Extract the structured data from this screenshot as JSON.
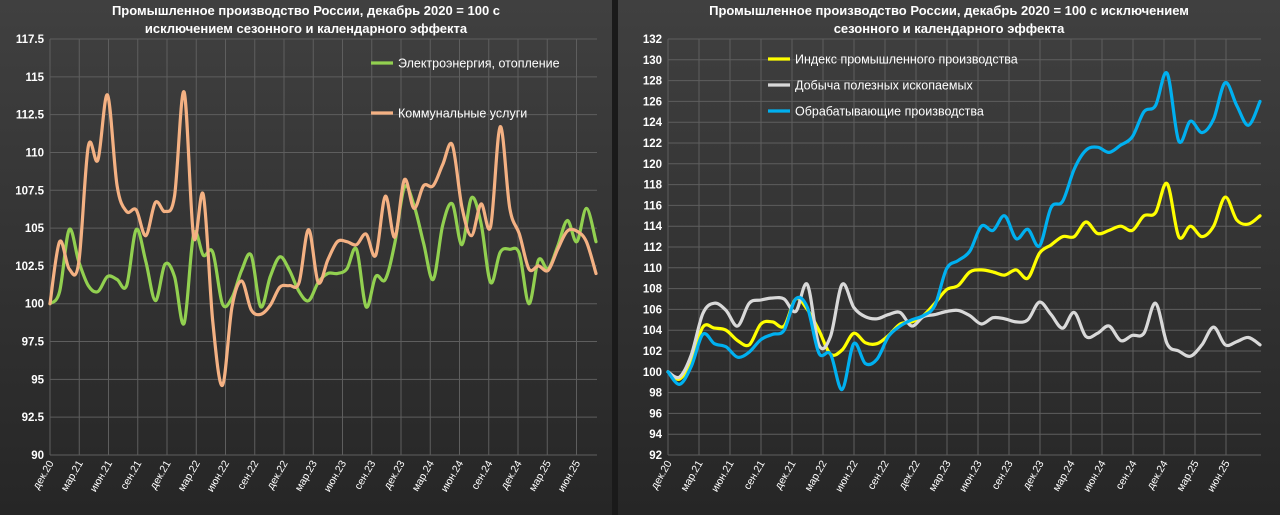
{
  "chart_data": [
    {
      "type": "line",
      "title_line1": "Промышленное производство России, декабрь 2020 = 100 с",
      "title_line2": "исключением сезонного и календарного эффекта",
      "xlabel": "",
      "ylabel": "",
      "ylim": [
        90,
        117.5
      ],
      "y_ticks": [
        "90",
        "92.5",
        "95",
        "97.5",
        "100",
        "102.5",
        "105",
        "107.5",
        "110",
        "112.5",
        "115",
        "117.5"
      ],
      "x_tick_labels": [
        "дек.20",
        "мар.21",
        "июн.21",
        "сен.21",
        "дек.21",
        "мар.22",
        "июн.22",
        "сен.22",
        "дек.22",
        "мар.23",
        "июн.23",
        "сен.23",
        "дек.23",
        "мар.24",
        "июн.24",
        "сен.24",
        "дек.24",
        "мар.25",
        "июн.25"
      ],
      "grid": true,
      "legend_position": "top-right",
      "series": [
        {
          "name": "Электроэнергия, отопление",
          "color": "#92d050",
          "values": [
            100,
            100.8,
            104.9,
            102.8,
            101.2,
            100.8,
            101.8,
            101.6,
            101.2,
            104.9,
            102.8,
            100.2,
            102.6,
            101.8,
            98.7,
            104.6,
            103.2,
            103.4,
            100,
            100.4,
            102.2,
            103.2,
            99.8,
            101.8,
            103.1,
            102.2,
            100.8,
            100.2,
            101.4,
            102,
            102,
            102.3,
            103.6,
            99.8,
            101.8,
            101.6,
            104,
            107.7,
            106.5,
            104,
            101.6,
            105.2,
            106.6,
            103.9,
            107,
            105.3,
            101.4,
            103.4,
            103.6,
            103.3,
            100,
            102.9,
            102.3,
            103.8,
            105.5,
            104.1,
            106.3,
            104.1
          ]
        },
        {
          "name": "Коммунальные услуги",
          "color": "#f4b183",
          "values": [
            100,
            104.1,
            102.3,
            102.7,
            110.4,
            109.5,
            113.8,
            107.8,
            106.1,
            106.2,
            104.5,
            106.7,
            106.1,
            107.1,
            114,
            104.4,
            107.2,
            98.8,
            94.6,
            99.8,
            101.5,
            99.6,
            99.3,
            99.9,
            101.1,
            101.2,
            101.4,
            104.9,
            101.4,
            102.9,
            104.1,
            104.1,
            103.9,
            104.6,
            103.2,
            107.1,
            104.4,
            108.2,
            106.3,
            107.8,
            107.8,
            109.2,
            110.5,
            106.4,
            104.5,
            106.6,
            105.1,
            111.7,
            106.3,
            104.6,
            102.3,
            102.5,
            102.2,
            103.6,
            104.8,
            104.8,
            104.1,
            102
          ]
        }
      ]
    },
    {
      "type": "line",
      "title_line1": "Промышленное производство России, декабрь 2020 = 100 с исключением",
      "title_line2": "сезонного и календарного эффекта",
      "xlabel": "",
      "ylabel": "",
      "ylim": [
        92,
        132
      ],
      "y_ticks": [
        "92",
        "94",
        "96",
        "98",
        "100",
        "102",
        "104",
        "106",
        "108",
        "110",
        "112",
        "114",
        "116",
        "118",
        "120",
        "122",
        "124",
        "126",
        "128",
        "130",
        "132"
      ],
      "x_tick_labels": [
        "дек.20",
        "мар.21",
        "июн.21",
        "сен.21",
        "дек.21",
        "мар.22",
        "июн.22",
        "сен.22",
        "дек.22",
        "мар.23",
        "июн.23",
        "сен.23",
        "дек.23",
        "мар.24",
        "июн.24",
        "сен.24",
        "дек.24",
        "мар.25",
        "июн.25"
      ],
      "grid": true,
      "legend_position": "top-left",
      "series": [
        {
          "name": "Индекс промышленного производства",
          "color": "#ffff00",
          "values": [
            100,
            99.3,
            101,
            104.3,
            104.2,
            104,
            103,
            102.6,
            104.6,
            104.8,
            104.4,
            107,
            106,
            104,
            101.7,
            102.1,
            103.7,
            102.8,
            102.7,
            103.5,
            104.6,
            104.8,
            105.4,
            106.6,
            107.9,
            108.3,
            109.6,
            109.8,
            109.6,
            109.3,
            109.8,
            109,
            111.4,
            112.2,
            113,
            113,
            114.4,
            113.3,
            113.6,
            114,
            113.6,
            115,
            115.3,
            118.1,
            113,
            114,
            113,
            114,
            116.8,
            114.6,
            114.2,
            115
          ]
        },
        {
          "name": "Добыча полезных ископаемых",
          "color": "#d9d9d9",
          "values": [
            100,
            99.5,
            101.6,
            105.6,
            106.6,
            105.9,
            104.4,
            106.6,
            106.9,
            107.1,
            107,
            105.8,
            108.4,
            102.6,
            103.4,
            108.4,
            106.2,
            105.3,
            105.1,
            105.5,
            105.7,
            104.4,
            105.3,
            105.5,
            105.8,
            105.9,
            105.4,
            104.6,
            105.2,
            105.1,
            104.8,
            105,
            106.7,
            105.5,
            104.2,
            105.7,
            103.4,
            103.7,
            104.4,
            103,
            103.5,
            103.7,
            106.6,
            102.7,
            102,
            101.5,
            102.6,
            104.3,
            102.6,
            102.9,
            103.3,
            102.6
          ]
        },
        {
          "name": "Обрабатывающие производства",
          "color": "#00b0f0",
          "values": [
            100,
            98.8,
            100.5,
            103.6,
            102.7,
            102.4,
            101.4,
            101.9,
            103.1,
            103.6,
            104,
            107,
            106.2,
            101.8,
            101.7,
            98.3,
            102.7,
            100.8,
            101.2,
            103.4,
            104.4,
            105,
            105.4,
            106.4,
            109.9,
            110.7,
            111.6,
            114,
            113.6,
            115,
            112.8,
            113.7,
            112.1,
            115.8,
            116.4,
            119.5,
            121.3,
            121.6,
            121.1,
            121.8,
            122.6,
            125,
            125.6,
            128.7,
            122.2,
            124.1,
            123,
            124.3,
            127.8,
            125.6,
            123.7,
            126
          ]
        }
      ]
    }
  ]
}
